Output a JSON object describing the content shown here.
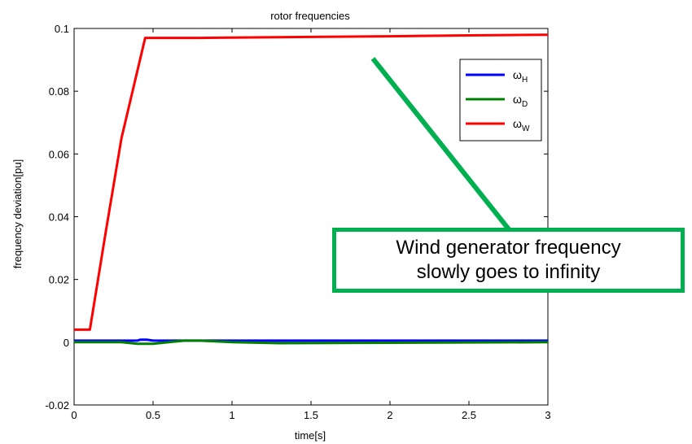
{
  "chart_data": {
    "type": "line",
    "title": "rotor frequencies",
    "xlabel": "time[s]",
    "ylabel": "frequency deviation[pu]",
    "xlim": [
      0,
      3
    ],
    "ylim": [
      -0.02,
      0.1
    ],
    "xticks": [
      0,
      0.5,
      1,
      1.5,
      2,
      2.5,
      3
    ],
    "xtick_labels": [
      "0",
      "0.5",
      "1",
      "1.5",
      "2",
      "2.5",
      "3"
    ],
    "yticks": [
      -0.02,
      0,
      0.02,
      0.04,
      0.06,
      0.08,
      0.1
    ],
    "ytick_labels": [
      "-0.02",
      "0",
      "0.02",
      "0.04",
      "0.06",
      "0.08",
      "0.1"
    ],
    "grid": false,
    "legend_position": "top-right",
    "series": [
      {
        "name_main": "ω",
        "name_sub": "H",
        "color": "#0000ff",
        "x": [
          0,
          0.4,
          0.42,
          0.46,
          0.5,
          0.7,
          3
        ],
        "y": [
          0.0005,
          0.0005,
          0.0008,
          0.0008,
          0.0005,
          0.0005,
          0.0005
        ]
      },
      {
        "name_main": "ω",
        "name_sub": "D",
        "color": "#008000",
        "x": [
          0,
          0.3,
          0.4,
          0.5,
          0.6,
          0.7,
          0.8,
          1.0,
          1.3,
          3
        ],
        "y": [
          0,
          0,
          -0.0005,
          -0.0005,
          0,
          0.0005,
          0.0005,
          0,
          -0.0003,
          0
        ]
      },
      {
        "name_main": "ω",
        "name_sub": "W",
        "color": "#ff0000",
        "x": [
          0,
          0.1,
          0.2,
          0.3,
          0.45,
          0.8,
          1.5,
          2,
          2.5,
          3
        ],
        "y": [
          0.004,
          0.004,
          0.035,
          0.065,
          0.097,
          0.097,
          0.0973,
          0.0975,
          0.0978,
          0.098
        ]
      }
    ],
    "annotation": {
      "line1": "Wind generator frequency",
      "line2": "slowly goes to infinity",
      "border_color": "#00b050",
      "arrow_color": "#00b050"
    }
  }
}
